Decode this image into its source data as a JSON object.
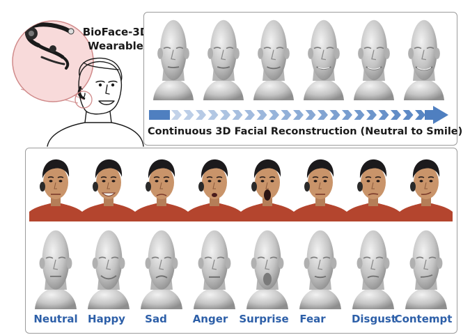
{
  "device": {
    "title_line1": "BioFace-3D",
    "title_line2": "Wearable"
  },
  "top_panel": {
    "caption": "Continuous 3D Facial Reconstruction (Neutral to Smile)",
    "smile_levels": [
      0.0,
      0.2,
      0.4,
      0.6,
      0.8,
      1.0
    ]
  },
  "expressions": [
    {
      "label": "Neutral",
      "mouth": "neutral"
    },
    {
      "label": "Happy",
      "mouth": "smile"
    },
    {
      "label": "Sad",
      "mouth": "sad"
    },
    {
      "label": "Anger",
      "mouth": "anger"
    },
    {
      "label": "Surprise",
      "mouth": "open"
    },
    {
      "label": "Fear",
      "mouth": "fear"
    },
    {
      "label": "Disgust",
      "mouth": "disgust"
    },
    {
      "label": "Contempt",
      "mouth": "contempt"
    }
  ],
  "colors": {
    "arrow": "#4f7fc0",
    "label": "#2d5fa8",
    "shirt": "#b4452e",
    "skin": "#c9946a",
    "hair": "#1c1a1c",
    "mesh": "#c8c8c8"
  }
}
